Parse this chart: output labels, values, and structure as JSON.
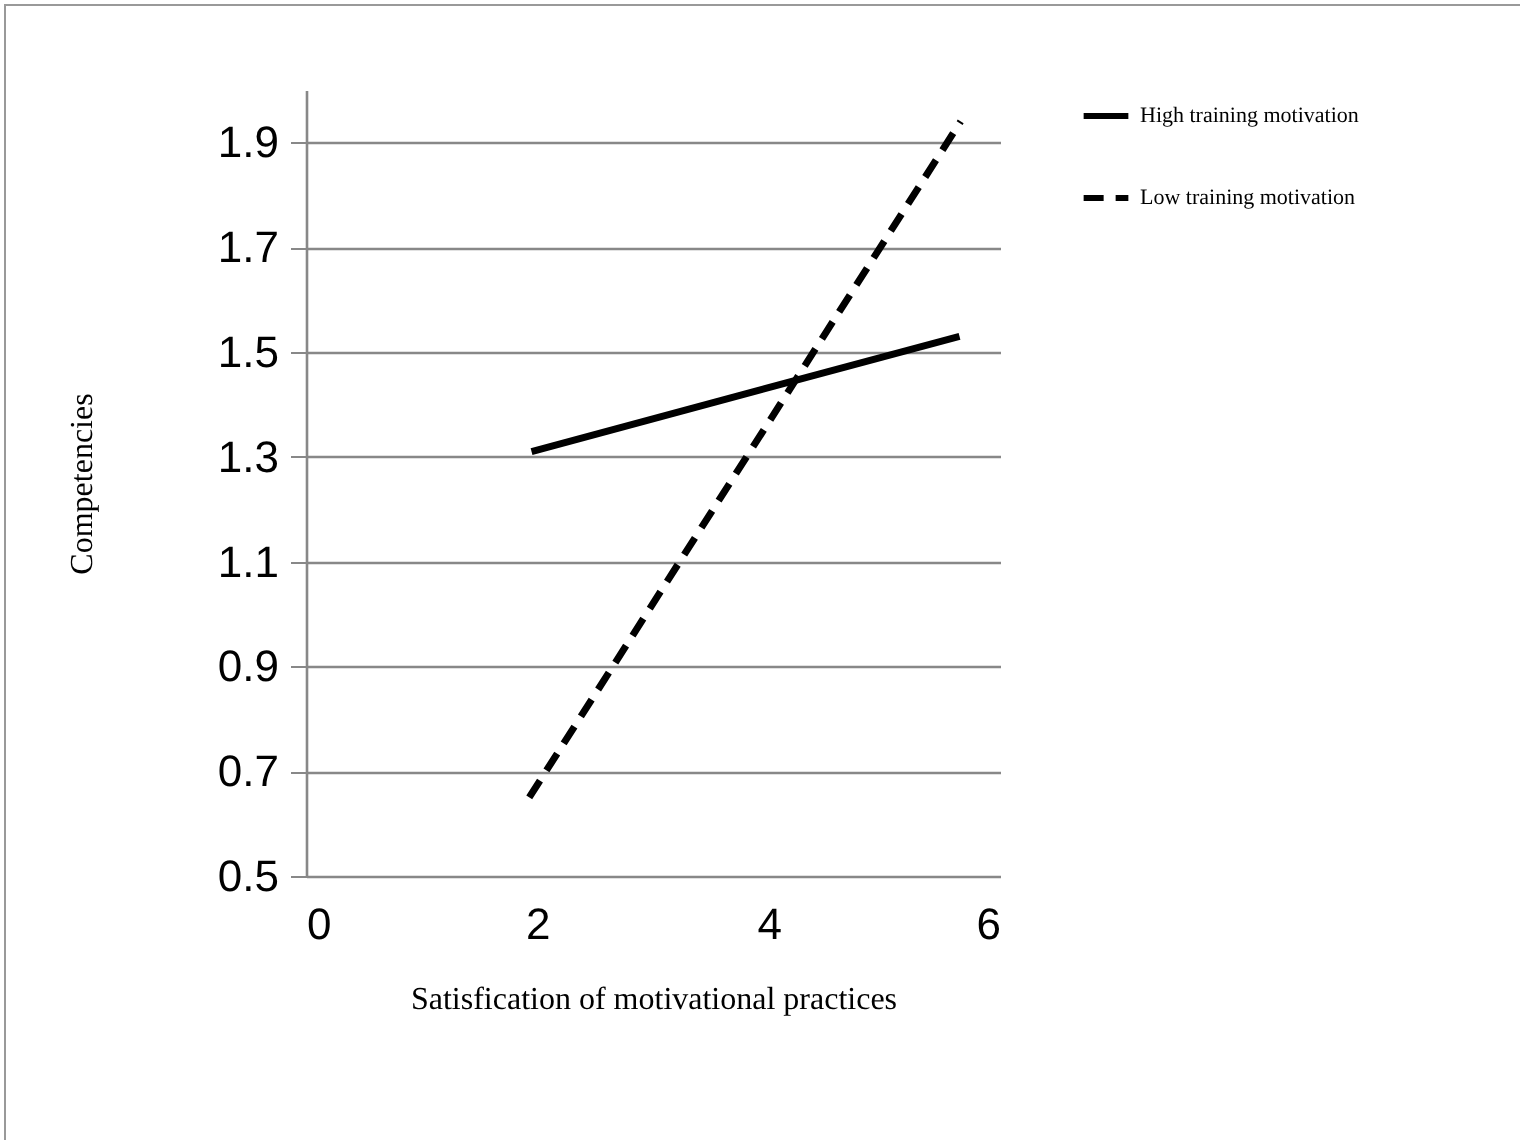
{
  "chart_data": {
    "type": "line",
    "xlabel": "Satisfication of motivational practices",
    "ylabel": "Competencies",
    "xlim": [
      0,
      6
    ],
    "xticks": [
      0,
      2,
      4,
      6
    ],
    "ylim": [
      0.5,
      2.0
    ],
    "yticks": [
      0.5,
      0.7,
      0.9,
      1.1,
      1.3,
      1.5,
      1.7,
      1.9
    ],
    "grid": "y",
    "legend": "right",
    "series": [
      {
        "name": "High training motivation",
        "color": "#000000",
        "line_style": "solid",
        "x": [
          1.95,
          5.65
        ],
        "values": [
          1.31,
          1.53
        ]
      },
      {
        "name": "Low training motivation",
        "color": "#000000",
        "line_style": "dashed",
        "x": [
          1.93,
          5.66
        ],
        "values": [
          0.65,
          1.94
        ]
      }
    ]
  }
}
